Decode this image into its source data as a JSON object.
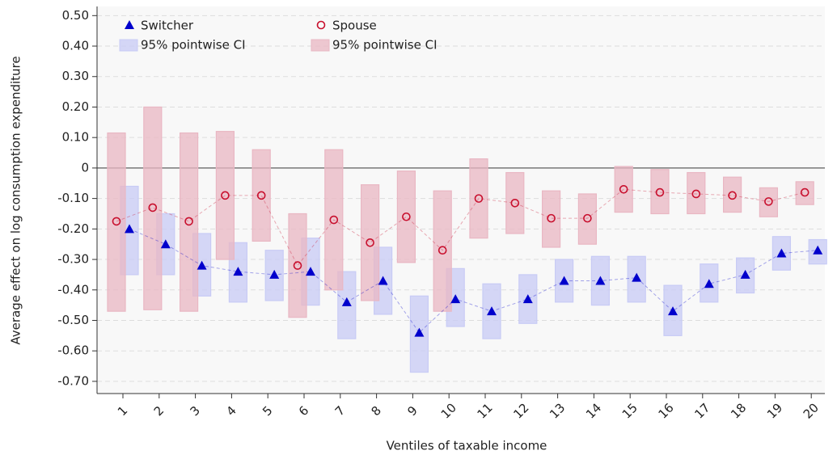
{
  "chart_data": {
    "type": "ci-point",
    "x_label": "Ventiles of taxable income",
    "y_label": "Average effect on log consumption expenditure",
    "categories": [
      "1",
      "2",
      "3",
      "4",
      "5",
      "6",
      "7",
      "8",
      "9",
      "10",
      "11",
      "12",
      "13",
      "14",
      "15",
      "16",
      "17",
      "18",
      "19",
      "20"
    ],
    "series": [
      {
        "name": "Switcher",
        "ci_name": "95% pointwise CI",
        "color": "#0000cc",
        "ci_color": "#c8cbf5",
        "values": [
          -0.2,
          -0.25,
          -0.32,
          -0.34,
          -0.35,
          -0.34,
          -0.44,
          -0.37,
          -0.54,
          -0.43,
          -0.47,
          -0.43,
          -0.37,
          -0.37,
          -0.36,
          -0.47,
          -0.38,
          -0.35,
          -0.28,
          -0.27
        ],
        "lower": [
          -0.35,
          -0.35,
          -0.42,
          -0.44,
          -0.435,
          -0.45,
          -0.56,
          -0.48,
          -0.67,
          -0.52,
          -0.56,
          -0.51,
          -0.44,
          -0.45,
          -0.44,
          -0.55,
          -0.44,
          -0.41,
          -0.335,
          -0.315
        ],
        "upper": [
          -0.06,
          -0.15,
          -0.215,
          -0.245,
          -0.27,
          -0.23,
          -0.34,
          -0.26,
          -0.42,
          -0.33,
          -0.38,
          -0.35,
          -0.3,
          -0.29,
          -0.29,
          -0.385,
          -0.315,
          -0.295,
          -0.225,
          -0.235
        ]
      },
      {
        "name": "Spouse",
        "ci_name": "95% pointwise CI",
        "color": "#c8102e",
        "ci_color": "#e9b7c3",
        "values": [
          -0.175,
          -0.13,
          -0.175,
          -0.09,
          -0.09,
          -0.32,
          -0.17,
          -0.245,
          -0.16,
          -0.27,
          -0.1,
          -0.115,
          -0.165,
          -0.165,
          -0.07,
          -0.08,
          -0.085,
          -0.09,
          -0.11,
          -0.08
        ],
        "lower": [
          -0.47,
          -0.465,
          -0.47,
          -0.3,
          -0.24,
          -0.49,
          -0.4,
          -0.435,
          -0.31,
          -0.47,
          -0.23,
          -0.215,
          -0.26,
          -0.25,
          -0.145,
          -0.15,
          -0.15,
          -0.145,
          -0.16,
          -0.12
        ],
        "upper": [
          0.115,
          0.2,
          0.115,
          0.12,
          0.06,
          -0.15,
          0.06,
          -0.055,
          -0.01,
          -0.075,
          0.03,
          -0.015,
          -0.075,
          -0.085,
          0.005,
          -0.005,
          -0.015,
          -0.03,
          -0.065,
          -0.045
        ]
      }
    ],
    "ylim": [
      -0.74,
      0.53
    ],
    "yticks": [
      {
        "value": 0.5,
        "label": "0.50"
      },
      {
        "value": 0.4,
        "label": "0.40"
      },
      {
        "value": 0.3,
        "label": "0.30"
      },
      {
        "value": 0.2,
        "label": "0.20"
      },
      {
        "value": 0.1,
        "label": "0.10"
      },
      0,
      {
        "value": -0.1,
        "label": "-0.10"
      },
      {
        "value": -0.2,
        "label": "-0.20"
      },
      {
        "value": -0.3,
        "label": "-0.30"
      },
      {
        "value": -0.4,
        "label": "-0.40"
      },
      {
        "value": -0.5,
        "label": "-0.50"
      },
      {
        "value": -0.6,
        "label": "-0.60"
      },
      {
        "value": -0.7,
        "label": "-0.70"
      }
    ],
    "grid": true,
    "zero_line": true,
    "legend": "upper left"
  }
}
